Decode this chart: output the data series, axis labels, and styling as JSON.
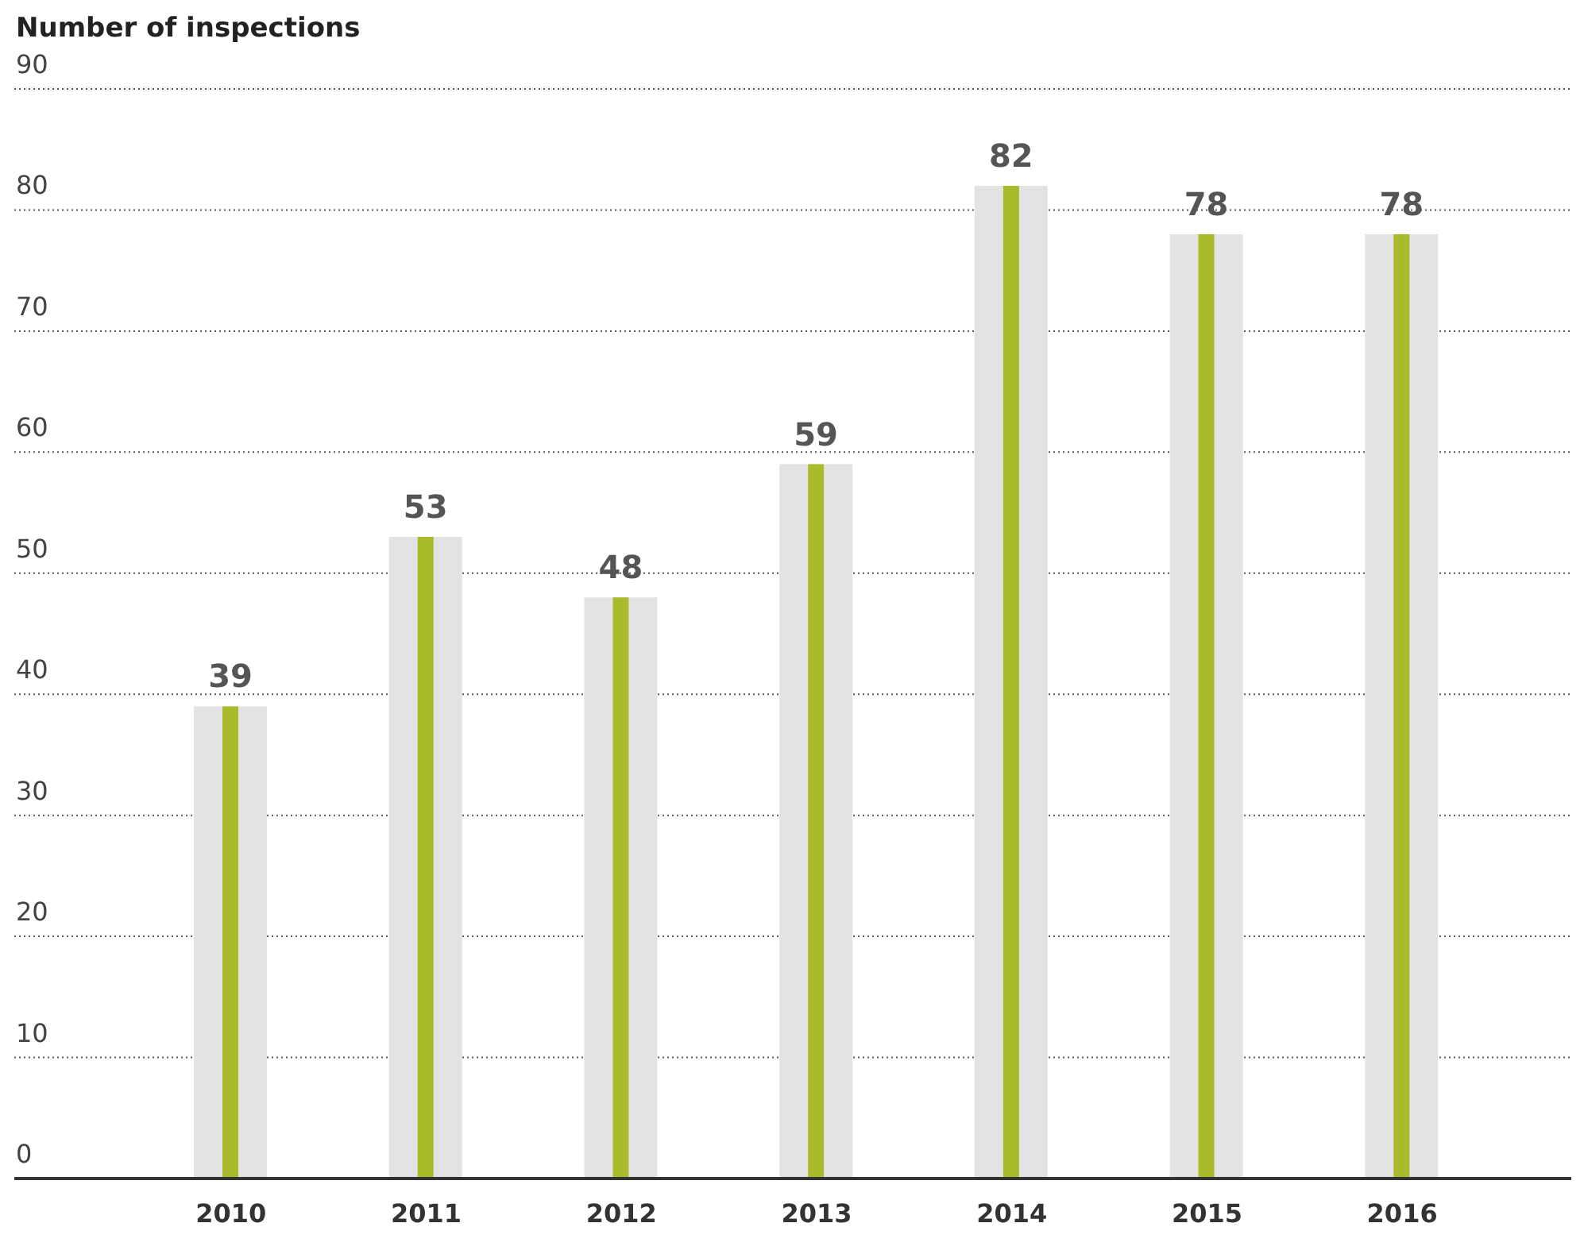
{
  "chart_data": {
    "type": "bar",
    "ylabel": "Number of inspections",
    "categories": [
      "2010",
      "2011",
      "2012",
      "2013",
      "2014",
      "2015",
      "2016"
    ],
    "series": [
      {
        "color": "#e3e3e3",
        "values": [
          39,
          53,
          48,
          59,
          82,
          78,
          78
        ],
        "value_labels": [
          "39",
          "53",
          "48",
          "59",
          "82",
          "78",
          "78"
        ]
      },
      {
        "color": "#a9bb2b",
        "values": [
          39,
          53,
          48,
          59,
          82,
          78,
          78
        ]
      }
    ],
    "ylim": [
      0,
      90
    ],
    "yticks": [
      0,
      10,
      20,
      30,
      40,
      50,
      60,
      70,
      80,
      90
    ],
    "grid": "y",
    "legend": false
  }
}
